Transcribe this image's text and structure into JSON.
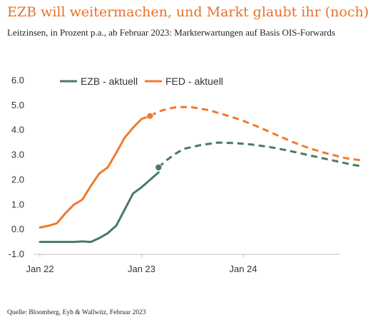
{
  "header": {
    "title": "EZB will weitermachen, und Markt glaubt ihr (noch)",
    "subtitle": "Leitzinsen, in Prozent p.a., ab Februar 2023: Markterwartungen auf Basis OIS-Forwards"
  },
  "footer": {
    "source": "Quelle: Bloomberg, Eyb & Wallwitz, Februar 2023"
  },
  "colors": {
    "ezb": "#4a7a62",
    "fed": "#ee7b2e"
  },
  "chart_data": {
    "type": "line",
    "x_unit": "month",
    "x_ticks": [
      "Jan 22",
      "Jan 23",
      "Jan 24"
    ],
    "y_ticks": [
      "6.0",
      "5.0",
      "4.0",
      "3.0",
      "2.0",
      "1.0",
      "0.0",
      "-1.0"
    ],
    "ylim": [
      -1,
      6
    ],
    "grid": false,
    "legend_position": "top",
    "series": [
      {
        "name": "EZB - aktuell",
        "color": "#4a7a62",
        "actual": [
          [
            "2022-01",
            -0.5
          ],
          [
            "2022-02",
            -0.5
          ],
          [
            "2022-03",
            -0.5
          ],
          [
            "2022-04",
            -0.5
          ],
          [
            "2022-05",
            -0.5
          ],
          [
            "2022-06",
            -0.48
          ],
          [
            "2022-07",
            -0.5
          ],
          [
            "2022-08",
            -0.35
          ],
          [
            "2022-09",
            -0.15
          ],
          [
            "2022-10",
            0.15
          ],
          [
            "2022-11",
            0.8
          ],
          [
            "2022-12",
            1.45
          ],
          [
            "2023-01",
            1.7
          ],
          [
            "2023-02",
            2.0
          ],
          [
            "2023-03",
            2.3
          ]
        ],
        "forecast": [
          [
            "2023-03",
            2.5
          ],
          [
            "2023-04",
            2.8
          ],
          [
            "2023-05",
            3.05
          ],
          [
            "2023-06",
            3.25
          ],
          [
            "2023-08",
            3.4
          ],
          [
            "2023-10",
            3.5
          ],
          [
            "2023-12",
            3.48
          ],
          [
            "2024-02",
            3.42
          ],
          [
            "2024-04",
            3.33
          ],
          [
            "2024-06",
            3.2
          ],
          [
            "2024-08",
            3.05
          ],
          [
            "2024-10",
            2.9
          ],
          [
            "2024-12",
            2.75
          ],
          [
            "2025-02",
            2.6
          ],
          [
            "2025-03",
            2.55
          ]
        ]
      },
      {
        "name": "FED - aktuell",
        "color": "#ee7b2e",
        "actual": [
          [
            "2022-01",
            0.08
          ],
          [
            "2022-02",
            0.15
          ],
          [
            "2022-03",
            0.25
          ],
          [
            "2022-04",
            0.65
          ],
          [
            "2022-05",
            1.0
          ],
          [
            "2022-06",
            1.2
          ],
          [
            "2022-07",
            1.75
          ],
          [
            "2022-08",
            2.25
          ],
          [
            "2022-09",
            2.5
          ],
          [
            "2022-10",
            3.08
          ],
          [
            "2022-11",
            3.7
          ],
          [
            "2022-12",
            4.1
          ],
          [
            "2023-01",
            4.45
          ],
          [
            "2023-02",
            4.57
          ]
        ],
        "forecast": [
          [
            "2023-02",
            4.57
          ],
          [
            "2023-03",
            4.75
          ],
          [
            "2023-04",
            4.85
          ],
          [
            "2023-05",
            4.92
          ],
          [
            "2023-06",
            4.93
          ],
          [
            "2023-07",
            4.92
          ],
          [
            "2023-09",
            4.8
          ],
          [
            "2023-11",
            4.6
          ],
          [
            "2024-01",
            4.38
          ],
          [
            "2024-03",
            4.1
          ],
          [
            "2024-05",
            3.8
          ],
          [
            "2024-07",
            3.5
          ],
          [
            "2024-09",
            3.25
          ],
          [
            "2024-11",
            3.05
          ],
          [
            "2025-01",
            2.88
          ],
          [
            "2025-03",
            2.78
          ]
        ]
      }
    ]
  }
}
